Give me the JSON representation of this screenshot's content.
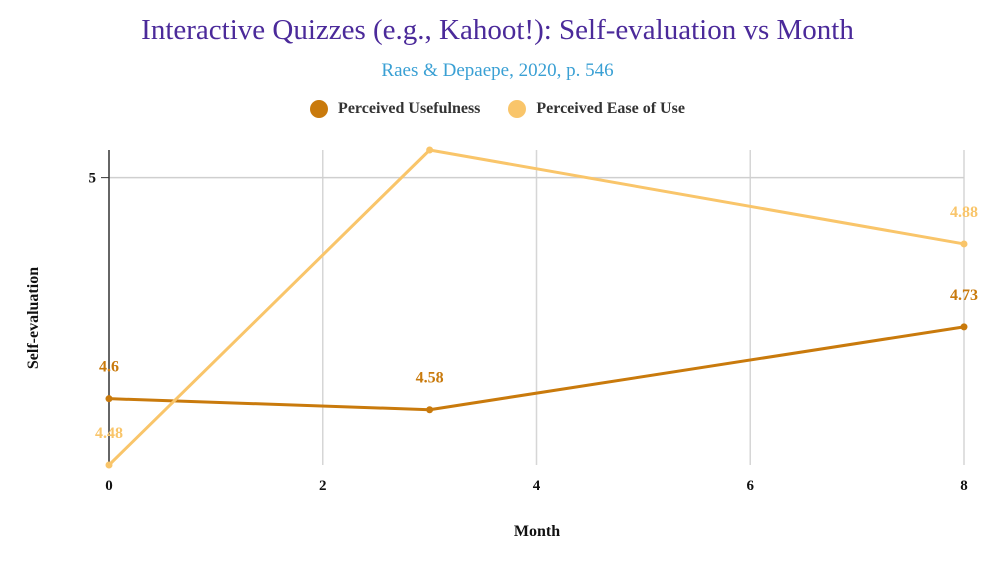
{
  "chart_data": {
    "type": "line",
    "title": "Interactive Quizzes (e.g., Kahoot!): Self-evaluation vs Month",
    "subtitle": "Raes & Depaepe, 2020, p. 546",
    "xlabel": "Month",
    "ylabel": "Self-evaluation",
    "xlim": [
      0,
      8
    ],
    "ylim": [
      4.48,
      5.05
    ],
    "x_ticks": [
      0,
      2,
      4,
      6,
      8
    ],
    "y_ticks": [
      5
    ],
    "grid": true,
    "legend_position": "top",
    "series": [
      {
        "name": "Perceived Usefulness",
        "color": "#c97a0c",
        "x": [
          0,
          3,
          8
        ],
        "y": [
          4.6,
          4.58,
          4.73
        ],
        "labels": [
          "4.6",
          "4.58",
          "4.73"
        ]
      },
      {
        "name": "Perceived Ease of Use",
        "color": "#f9c56a",
        "x": [
          0,
          3,
          8
        ],
        "y": [
          4.48,
          5.05,
          4.88
        ],
        "labels": [
          "4.48",
          "",
          "4.88"
        ]
      }
    ]
  }
}
